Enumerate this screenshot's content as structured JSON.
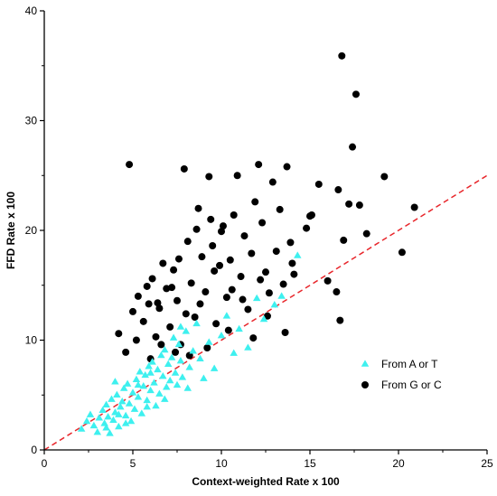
{
  "chart_data": {
    "type": "scatter",
    "title": "",
    "xlabel": "Context-weighted Rate x 100",
    "ylabel": "FFD Rate x 100",
    "xlim": [
      0,
      25
    ],
    "ylim": [
      0,
      40
    ],
    "xticks": [
      "0",
      "5",
      "10",
      "15",
      "20",
      "25"
    ],
    "yticks": [
      "0",
      "10",
      "20",
      "30",
      "40"
    ],
    "grid": false,
    "legend_position": "bottom-right",
    "reference_line": {
      "style": "dashed",
      "color": "#e8262b",
      "x": [
        0,
        25
      ],
      "y": [
        0,
        25
      ]
    },
    "series": [
      {
        "name": "From A or T",
        "marker": "triangle",
        "color": "#3ef0ef",
        "points": [
          [
            2.1,
            1.9
          ],
          [
            2.4,
            2.6
          ],
          [
            2.6,
            3.2
          ],
          [
            2.8,
            2.2
          ],
          [
            3.0,
            1.6
          ],
          [
            3.1,
            2.9
          ],
          [
            3.3,
            3.6
          ],
          [
            3.4,
            2.4
          ],
          [
            3.5,
            4.1
          ],
          [
            3.6,
            3.0
          ],
          [
            3.7,
            1.5
          ],
          [
            3.8,
            4.6
          ],
          [
            3.9,
            2.7
          ],
          [
            4.0,
            3.4
          ],
          [
            4.1,
            5.0
          ],
          [
            4.2,
            2.1
          ],
          [
            4.3,
            3.9
          ],
          [
            4.4,
            4.4
          ],
          [
            4.5,
            5.6
          ],
          [
            4.6,
            3.1
          ],
          [
            4.7,
            6.0
          ],
          [
            4.8,
            4.2
          ],
          [
            4.9,
            2.6
          ],
          [
            5.0,
            5.2
          ],
          [
            5.1,
            3.7
          ],
          [
            5.2,
            6.4
          ],
          [
            5.3,
            4.8
          ],
          [
            5.4,
            7.1
          ],
          [
            5.5,
            3.3
          ],
          [
            5.6,
            5.8
          ],
          [
            5.7,
            6.8
          ],
          [
            5.8,
            4.5
          ],
          [
            5.9,
            7.6
          ],
          [
            6.0,
            5.4
          ],
          [
            6.1,
            8.0
          ],
          [
            6.2,
            6.1
          ],
          [
            6.3,
            4.0
          ],
          [
            6.4,
            7.3
          ],
          [
            6.5,
            5.1
          ],
          [
            6.6,
            8.6
          ],
          [
            6.7,
            6.7
          ],
          [
            6.8,
            9.1
          ],
          [
            6.9,
            5.7
          ],
          [
            7.0,
            7.8
          ],
          [
            7.1,
            6.3
          ],
          [
            7.2,
            8.4
          ],
          [
            7.3,
            10.2
          ],
          [
            7.4,
            7.0
          ],
          [
            7.5,
            5.9
          ],
          [
            7.6,
            9.6
          ],
          [
            7.7,
            8.1
          ],
          [
            7.8,
            6.6
          ],
          [
            8.0,
            10.8
          ],
          [
            8.2,
            7.5
          ],
          [
            8.4,
            9.0
          ],
          [
            8.6,
            11.5
          ],
          [
            8.8,
            8.3
          ],
          [
            9.0,
            6.5
          ],
          [
            9.3,
            9.8
          ],
          [
            9.6,
            7.4
          ],
          [
            10.0,
            10.4
          ],
          [
            10.3,
            12.2
          ],
          [
            10.7,
            8.8
          ],
          [
            11.0,
            11.0
          ],
          [
            11.5,
            9.3
          ],
          [
            12.0,
            13.8
          ],
          [
            12.4,
            11.9
          ],
          [
            13.0,
            13.2
          ],
          [
            13.4,
            14.0
          ],
          [
            14.3,
            17.7
          ],
          [
            4.2,
            3.2
          ],
          [
            4.6,
            2.4
          ],
          [
            5.3,
            5.9
          ],
          [
            6.0,
            7.0
          ],
          [
            6.8,
            4.6
          ],
          [
            7.7,
            11.2
          ],
          [
            3.5,
            2.0
          ],
          [
            4.0,
            6.2
          ],
          [
            5.8,
            3.9
          ],
          [
            8.1,
            5.6
          ]
        ]
      },
      {
        "name": "From G or C",
        "marker": "circle",
        "color": "#000000",
        "points": [
          [
            4.8,
            26.0
          ],
          [
            4.6,
            8.9
          ],
          [
            4.2,
            10.6
          ],
          [
            5.0,
            12.6
          ],
          [
            5.3,
            14.0
          ],
          [
            5.6,
            11.7
          ],
          [
            5.9,
            13.3
          ],
          [
            6.1,
            15.6
          ],
          [
            6.3,
            10.3
          ],
          [
            6.5,
            12.9
          ],
          [
            6.7,
            17.0
          ],
          [
            6.9,
            14.7
          ],
          [
            7.1,
            11.2
          ],
          [
            7.3,
            16.4
          ],
          [
            7.5,
            13.6
          ],
          [
            7.7,
            9.6
          ],
          [
            7.9,
            25.6
          ],
          [
            8.1,
            19.0
          ],
          [
            8.3,
            15.2
          ],
          [
            8.5,
            12.1
          ],
          [
            8.7,
            22.0
          ],
          [
            8.9,
            17.6
          ],
          [
            9.1,
            14.4
          ],
          [
            9.3,
            24.9
          ],
          [
            9.5,
            18.6
          ],
          [
            9.7,
            11.5
          ],
          [
            9.9,
            16.8
          ],
          [
            10.1,
            20.4
          ],
          [
            10.3,
            13.9
          ],
          [
            10.5,
            17.3
          ],
          [
            10.7,
            21.4
          ],
          [
            10.9,
            25.0
          ],
          [
            11.1,
            15.8
          ],
          [
            11.3,
            19.5
          ],
          [
            11.5,
            12.8
          ],
          [
            11.7,
            17.9
          ],
          [
            11.9,
            22.6
          ],
          [
            12.1,
            26.0
          ],
          [
            12.3,
            20.7
          ],
          [
            12.5,
            16.2
          ],
          [
            12.7,
            14.3
          ],
          [
            12.9,
            24.4
          ],
          [
            13.1,
            18.1
          ],
          [
            13.3,
            21.9
          ],
          [
            13.5,
            15.1
          ],
          [
            13.7,
            25.8
          ],
          [
            13.9,
            18.9
          ],
          [
            14.1,
            16.0
          ],
          [
            14.8,
            20.2
          ],
          [
            15.0,
            21.3
          ],
          [
            15.5,
            24.2
          ],
          [
            16.0,
            15.4
          ],
          [
            16.5,
            14.4
          ],
          [
            16.7,
            11.8
          ],
          [
            16.8,
            35.9
          ],
          [
            16.9,
            19.1
          ],
          [
            17.2,
            22.4
          ],
          [
            17.4,
            27.6
          ],
          [
            17.6,
            32.4
          ],
          [
            17.8,
            22.3
          ],
          [
            18.2,
            19.7
          ],
          [
            19.2,
            24.9
          ],
          [
            20.2,
            18.0
          ],
          [
            20.9,
            22.1
          ],
          [
            16.6,
            23.7
          ],
          [
            15.1,
            21.4
          ],
          [
            14.0,
            17.0
          ],
          [
            13.6,
            10.7
          ],
          [
            12.6,
            12.2
          ],
          [
            11.8,
            10.2
          ],
          [
            10.4,
            10.9
          ],
          [
            9.2,
            9.3
          ],
          [
            8.2,
            8.6
          ],
          [
            7.4,
            8.9
          ],
          [
            6.6,
            9.6
          ],
          [
            6.0,
            8.3
          ],
          [
            5.2,
            10.0
          ],
          [
            10.6,
            14.6
          ],
          [
            9.6,
            16.3
          ],
          [
            8.8,
            13.3
          ],
          [
            8.0,
            12.4
          ],
          [
            7.2,
            14.8
          ],
          [
            6.4,
            13.4
          ],
          [
            5.8,
            14.9
          ],
          [
            11.2,
            13.7
          ],
          [
            12.2,
            15.5
          ],
          [
            10.0,
            19.9
          ],
          [
            9.4,
            21.0
          ],
          [
            8.6,
            20.1
          ],
          [
            7.6,
            17.4
          ]
        ]
      }
    ]
  }
}
